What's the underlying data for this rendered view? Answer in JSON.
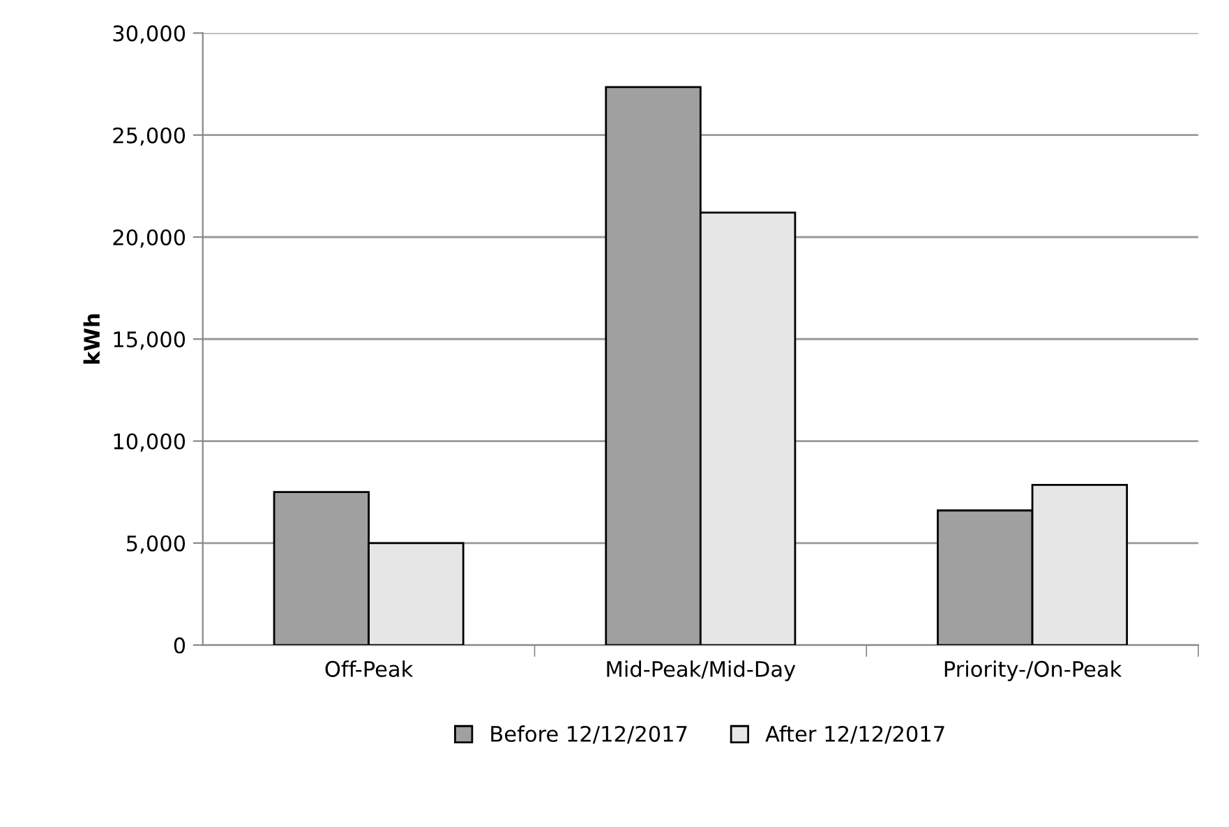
{
  "chart_data": {
    "type": "bar",
    "ylabel": "kWh",
    "categories": [
      "Off-Peak",
      "Mid-Peak/Mid-Day",
      "Priority-/On-Peak"
    ],
    "series": [
      {
        "name": "Before 12/12/2017",
        "color": "#a0a0a0",
        "values": [
          7500,
          27350,
          6600
        ]
      },
      {
        "name": "After 12/12/2017",
        "color": "#e6e6e6",
        "values": [
          5000,
          21200,
          7850
        ]
      }
    ],
    "ylim": [
      0,
      30000
    ],
    "yticks": [
      {
        "value": 0,
        "label": "0"
      },
      {
        "value": 5000,
        "label": "5,000"
      },
      {
        "value": 10000,
        "label": "10,000"
      },
      {
        "value": 15000,
        "label": "15,000"
      },
      {
        "value": 20000,
        "label": "20,000"
      },
      {
        "value": 25000,
        "label": "25,000"
      },
      {
        "value": 30000,
        "label": "30,000"
      }
    ],
    "grid": "y",
    "legend": "bottom"
  }
}
